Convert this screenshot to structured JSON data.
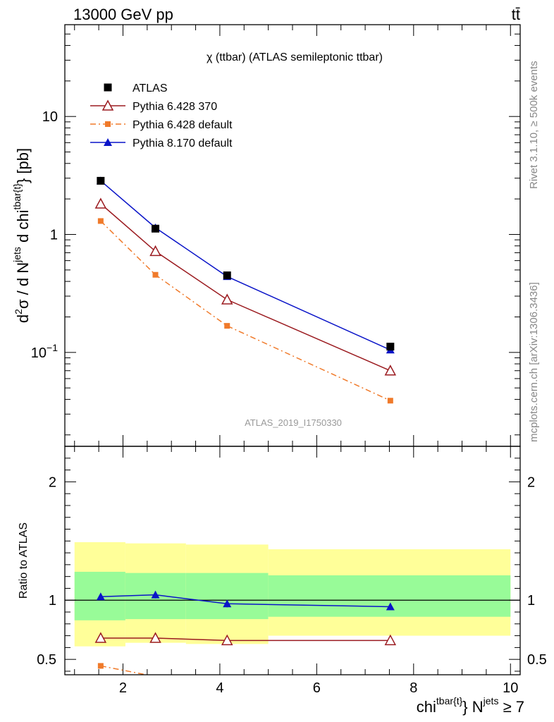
{
  "header": {
    "energy_label": "13000 GeV pp",
    "process_label": "tt̄"
  },
  "side_text": {
    "rivet": "Rivet 3.1.10, ≥ 500k events",
    "source": "mcplots.cern.ch [arXiv:1306.3436]"
  },
  "watermark": "ATLAS_2019_I1750330",
  "chart_data": [
    {
      "type": "line",
      "title": "χ (ttbar) (ATLAS semileptonic ttbar)",
      "ylabel": "d²σ / d N^jets d chi^tbar{t} [pb]",
      "yscale": "log",
      "ylim": [
        0.016,
        60
      ],
      "xlim": [
        0.8,
        10.2
      ],
      "y_ticks": [
        {
          "v": 10,
          "label": "10"
        },
        {
          "v": 1,
          "label": "1"
        },
        {
          "v": 0.1,
          "label": "10^-1"
        }
      ],
      "legend_position": "top-left",
      "series": [
        {
          "name": "ATLAS",
          "color": "#000000",
          "marker": "square",
          "line": "none",
          "x": [
            1.54,
            2.67,
            4.15,
            7.52
          ],
          "y": [
            2.85,
            1.12,
            0.45,
            0.112
          ]
        },
        {
          "name": "Pythia 6.428 370",
          "color": "#9b1b20",
          "marker": "triangle-open",
          "line": "solid",
          "x": [
            1.54,
            2.67,
            4.15,
            7.52
          ],
          "y": [
            1.82,
            0.72,
            0.28,
            0.07
          ]
        },
        {
          "name": "Pythia 6.428 default",
          "color": "#f07a2a",
          "marker": "square-small",
          "line": "dashdot",
          "x": [
            1.54,
            2.67,
            4.15,
            7.52
          ],
          "y": [
            1.3,
            0.455,
            0.168,
            0.039
          ]
        },
        {
          "name": "Pythia 8.170 default",
          "color": "#0a14c8",
          "marker": "triangle",
          "line": "solid",
          "x": [
            1.54,
            2.67,
            4.15,
            7.52
          ],
          "y": [
            2.85,
            1.14,
            0.44,
            0.105
          ]
        }
      ]
    },
    {
      "type": "line",
      "ylabel": "Ratio to ATLAS",
      "xlabel": "chi^tbar{t} N^jets ≥ 7",
      "ylim": [
        0.37,
        2.3
      ],
      "xlim": [
        0.8,
        10.2
      ],
      "y_ticks": [
        {
          "v": 2,
          "label": "2"
        },
        {
          "v": 1,
          "label": "1"
        },
        {
          "v": 0.5,
          "label": "0.5"
        }
      ],
      "x_ticks": [
        {
          "v": 2,
          "label": "2"
        },
        {
          "v": 4,
          "label": "4"
        },
        {
          "v": 6,
          "label": "6"
        },
        {
          "v": 8,
          "label": "8"
        },
        {
          "v": 10,
          "label": "10"
        }
      ],
      "uncertainty_bands": [
        {
          "x0": 1.0,
          "x1": 2.05,
          "stat_lo": 0.83,
          "stat_hi": 1.24,
          "tot_lo": 0.61,
          "tot_hi": 1.49
        },
        {
          "x0": 2.05,
          "x1": 3.3,
          "stat_lo": 0.84,
          "stat_hi": 1.23,
          "tot_lo": 0.64,
          "tot_hi": 1.48
        },
        {
          "x0": 3.3,
          "x1": 5.0,
          "stat_lo": 0.84,
          "stat_hi": 1.23,
          "tot_lo": 0.63,
          "tot_hi": 1.47
        },
        {
          "x0": 5.0,
          "x1": 10.0,
          "stat_lo": 0.86,
          "stat_hi": 1.21,
          "tot_lo": 0.7,
          "tot_hi": 1.43
        }
      ],
      "band_colors": {
        "stat": "#98fb98",
        "total": "#ffff99"
      },
      "series": [
        {
          "name": "Pythia 6.428 370",
          "color": "#9b1b20",
          "marker": "triangle-open",
          "line": "solid",
          "x": [
            1.54,
            2.67,
            4.15,
            7.52
          ],
          "y": [
            0.68,
            0.68,
            0.66,
            0.66
          ]
        },
        {
          "name": "Pythia 6.428 default",
          "color": "#f07a2a",
          "marker": "square-small",
          "line": "dashdot",
          "x": [
            1.54,
            2.67
          ],
          "y": [
            0.445,
            0.355
          ]
        },
        {
          "name": "Pythia 8.170 default",
          "color": "#0a14c8",
          "marker": "triangle",
          "line": "solid",
          "x": [
            1.54,
            2.67,
            4.15,
            7.52
          ],
          "y": [
            1.03,
            1.045,
            0.97,
            0.945
          ],
          "err": [
            0.02,
            0.03,
            0.03,
            0.03
          ]
        }
      ]
    }
  ]
}
